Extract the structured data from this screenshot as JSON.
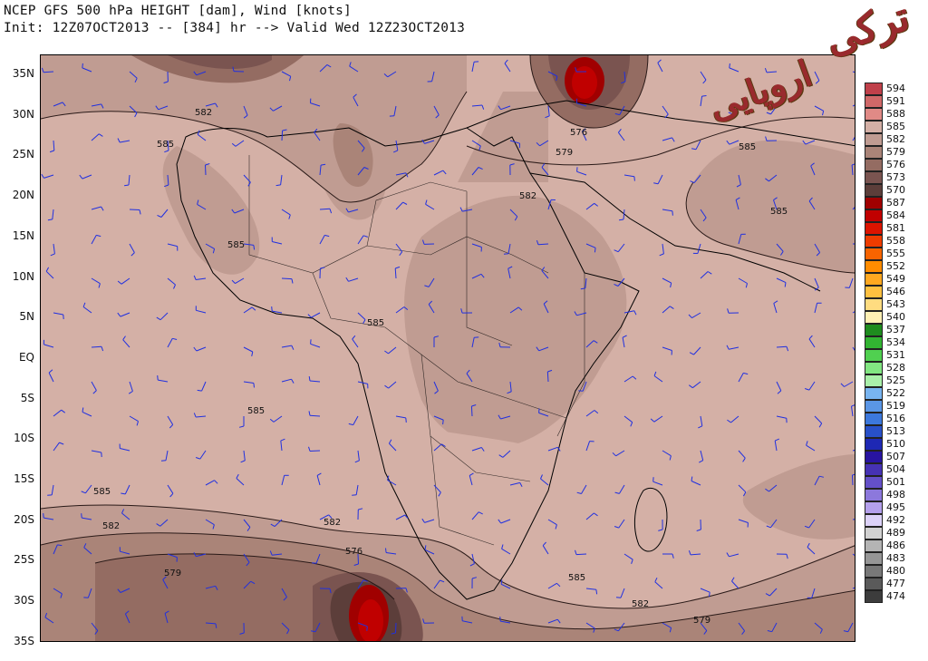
{
  "header": {
    "title_line1": "NCEP GFS 500 hPa HEIGHT [dam], Wind [knots]",
    "title_line2": "Init: 12Z07OCT2013 -- [384] hr --> Valid Wed 12Z23OCT2013"
  },
  "lat_axis": [
    "35N",
    "30N",
    "25N",
    "20N",
    "15N",
    "10N",
    "5N",
    "EQ",
    "5S",
    "10S",
    "15S",
    "20S",
    "25S",
    "30S",
    "35S"
  ],
  "contour_labels": [
    "582",
    "585",
    "585",
    "576",
    "579",
    "582",
    "585",
    "585",
    "585",
    "585",
    "585",
    "582",
    "582",
    "576",
    "579",
    "585",
    "582",
    "579"
  ],
  "legend": [
    {
      "label": "594",
      "color": "#c0404a"
    },
    {
      "label": "591",
      "color": "#d06868"
    },
    {
      "label": "588",
      "color": "#e08a86"
    },
    {
      "label": "585",
      "color": "#d4b0a6"
    },
    {
      "label": "582",
      "color": "#c09c92"
    },
    {
      "label": "579",
      "color": "#aa8478"
    },
    {
      "label": "576",
      "color": "#946c62"
    },
    {
      "label": "573",
      "color": "#7a5450"
    },
    {
      "label": "570",
      "color": "#5c3e3a"
    },
    {
      "label": "587",
      "color": "#a00000"
    },
    {
      "label": "584",
      "color": "#c00000"
    },
    {
      "label": "581",
      "color": "#dc1400"
    },
    {
      "label": "558",
      "color": "#ee3c00"
    },
    {
      "label": "555",
      "color": "#f86400"
    },
    {
      "label": "552",
      "color": "#ff8c00"
    },
    {
      "label": "549",
      "color": "#ffa820"
    },
    {
      "label": "546",
      "color": "#ffc040"
    },
    {
      "label": "543",
      "color": "#ffdc80"
    },
    {
      "label": "540",
      "color": "#fff0b4"
    },
    {
      "label": "537",
      "color": "#1e8c1e"
    },
    {
      "label": "534",
      "color": "#32b432"
    },
    {
      "label": "531",
      "color": "#50d050"
    },
    {
      "label": "528",
      "color": "#82e682"
    },
    {
      "label": "525",
      "color": "#aaf0aa"
    },
    {
      "label": "522",
      "color": "#78b4f0"
    },
    {
      "label": "519",
      "color": "#5a96e6"
    },
    {
      "label": "516",
      "color": "#3c78dc"
    },
    {
      "label": "513",
      "color": "#2850c8"
    },
    {
      "label": "510",
      "color": "#1e28b4"
    },
    {
      "label": "507",
      "color": "#2814a0"
    },
    {
      "label": "504",
      "color": "#4632b4"
    },
    {
      "label": "501",
      "color": "#6450c8"
    },
    {
      "label": "498",
      "color": "#8c78dc"
    },
    {
      "label": "495",
      "color": "#b4a0ec"
    },
    {
      "label": "492",
      "color": "#dcd2f8"
    },
    {
      "label": "489",
      "color": "#d2d2d2"
    },
    {
      "label": "486",
      "color": "#b4b4b4"
    },
    {
      "label": "483",
      "color": "#969696"
    },
    {
      "label": "480",
      "color": "#787878"
    },
    {
      "label": "477",
      "color": "#5a5a5a"
    },
    {
      "label": "474",
      "color": "#3c3c3c"
    }
  ],
  "watermark": "ترکی اروپایی",
  "colors": {
    "field_585": "#d4b0a6",
    "field_582": "#c09c92",
    "field_579": "#aa8478",
    "field_576": "#946c62",
    "field_573": "#7a5450",
    "field_570": "#5c3e3a",
    "high_core": "#c00000",
    "wind_barb": "#2030e0",
    "coast": "#000000"
  }
}
